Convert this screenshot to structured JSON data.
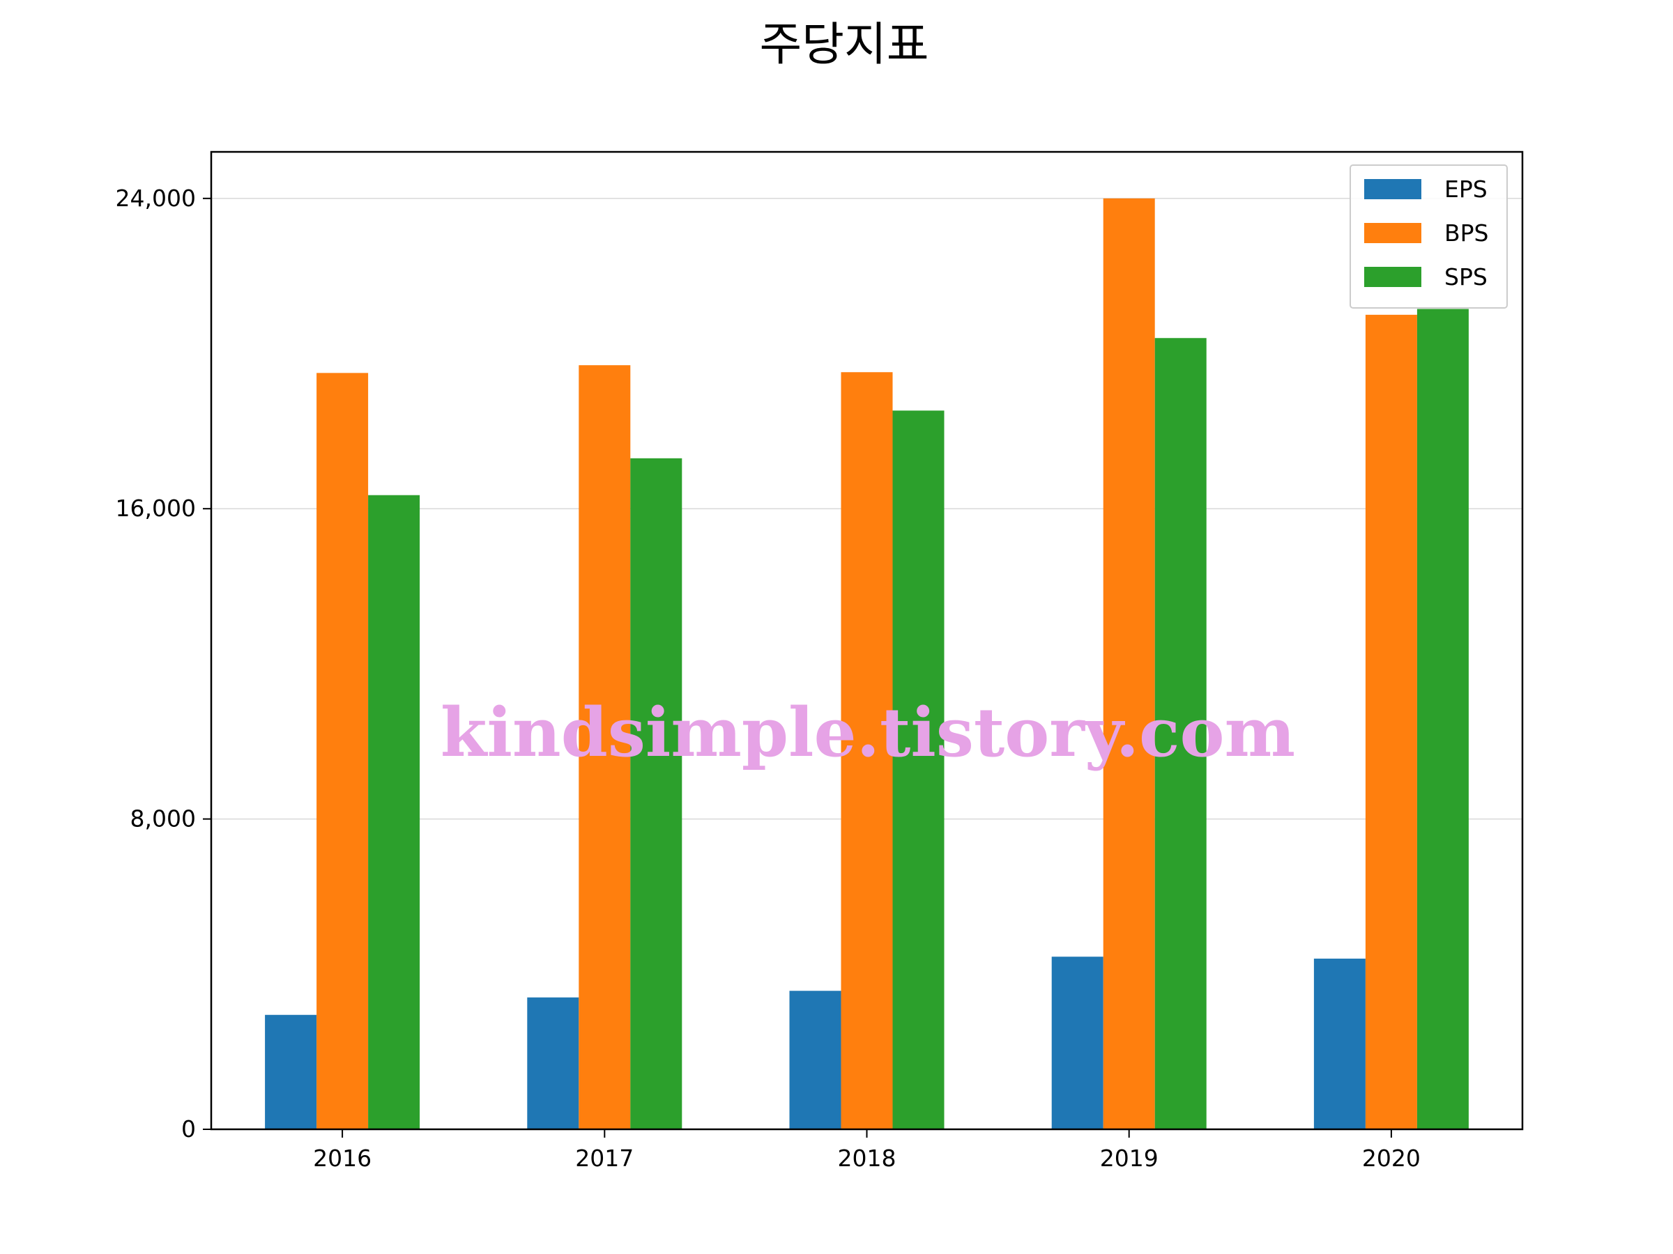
{
  "chart_data": {
    "type": "bar",
    "title": "주당지표",
    "xlabel": "",
    "ylabel": "",
    "categories": [
      "2016",
      "2017",
      "2018",
      "2019",
      "2020"
    ],
    "series": [
      {
        "name": "EPS",
        "color": "#1f77b4",
        "values": [
          2950,
          3400,
          3570,
          4450,
          4400
        ]
      },
      {
        "name": "BPS",
        "color": "#ff7f0e",
        "values": [
          19500,
          19700,
          19520,
          24000,
          21000
        ]
      },
      {
        "name": "SPS",
        "color": "#2ca02c",
        "values": [
          16350,
          17300,
          18530,
          20400,
          21150
        ]
      }
    ],
    "ylim": [
      0,
      25200
    ],
    "yticks": [
      0,
      8000,
      16000,
      24000
    ],
    "ytick_labels": [
      "0",
      "8,000",
      "16,000",
      "24,000"
    ],
    "grid": "y",
    "legend_position": "top-right",
    "watermark": "kindsimple.tistory.com"
  }
}
